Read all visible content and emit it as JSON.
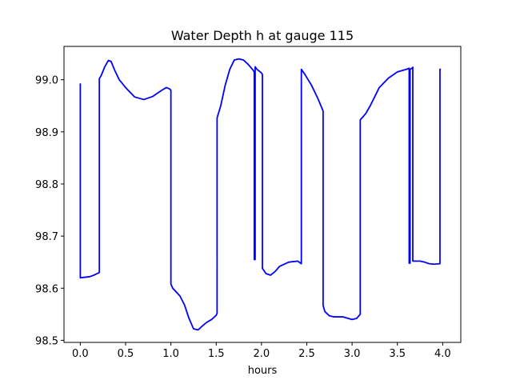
{
  "chart_data": {
    "type": "line",
    "title": "Water Depth h at gauge 115",
    "xlabel": "hours",
    "ylabel": "",
    "xlim": [
      -0.18,
      4.2
    ],
    "ylim": [
      98.496,
      99.064
    ],
    "grid": false,
    "legend": "none",
    "x_ticks": [
      0.0,
      0.5,
      1.0,
      1.5,
      2.0,
      2.5,
      3.0,
      3.5,
      4.0
    ],
    "x_tick_labels": [
      "0.0",
      "0.5",
      "1.0",
      "1.5",
      "2.0",
      "2.5",
      "3.0",
      "3.5",
      "4.0"
    ],
    "y_ticks": [
      98.5,
      98.6,
      98.7,
      98.8,
      98.9,
      99.0
    ],
    "y_tick_labels": [
      "98.5",
      "98.6",
      "98.7",
      "98.8",
      "98.9",
      "99.0"
    ],
    "series": [
      {
        "color": "#0000ff",
        "x": [
          0.0,
          0.0,
          0.05,
          0.1,
          0.15,
          0.21,
          0.21,
          0.23,
          0.27,
          0.31,
          0.34,
          0.38,
          0.43,
          0.5,
          0.6,
          0.7,
          0.8,
          0.9,
          0.95,
          0.99,
          1.0,
          1.0,
          1.02,
          1.1,
          1.15,
          1.2,
          1.25,
          1.3,
          1.35,
          1.4,
          1.45,
          1.5,
          1.51,
          1.51,
          1.55,
          1.6,
          1.65,
          1.7,
          1.75,
          1.8,
          1.85,
          1.9,
          1.92,
          1.92,
          1.93,
          1.93,
          1.95,
          2.0,
          2.01,
          2.01,
          2.05,
          2.1,
          2.15,
          2.2,
          2.3,
          2.4,
          2.44,
          2.44,
          2.48,
          2.55,
          2.62,
          2.68,
          2.68,
          2.7,
          2.75,
          2.8,
          2.9,
          3.0,
          3.05,
          3.09,
          3.09,
          3.15,
          3.2,
          3.3,
          3.4,
          3.5,
          3.6,
          3.63,
          3.63,
          3.64,
          3.64,
          3.66,
          3.67,
          3.67,
          3.7,
          3.75,
          3.8,
          3.85,
          3.9,
          3.97,
          3.97,
          3.98
        ],
        "y": [
          98.993,
          98.62,
          98.621,
          98.622,
          98.625,
          98.63,
          99.002,
          99.008,
          99.025,
          99.037,
          99.035,
          99.018,
          99.0,
          98.985,
          98.967,
          98.962,
          98.968,
          98.98,
          98.985,
          98.982,
          98.98,
          98.608,
          98.6,
          98.585,
          98.568,
          98.542,
          98.522,
          98.52,
          98.528,
          98.535,
          98.54,
          98.548,
          98.552,
          98.927,
          98.95,
          98.99,
          99.02,
          99.038,
          99.04,
          99.038,
          99.03,
          99.02,
          99.015,
          98.655,
          98.655,
          99.025,
          99.02,
          99.013,
          99.01,
          98.638,
          98.628,
          98.625,
          98.632,
          98.642,
          98.65,
          98.652,
          98.647,
          99.02,
          99.01,
          98.99,
          98.965,
          98.94,
          98.567,
          98.555,
          98.547,
          98.545,
          98.545,
          98.54,
          98.542,
          98.55,
          98.923,
          98.935,
          98.95,
          98.985,
          99.003,
          99.015,
          99.02,
          99.022,
          98.648,
          98.648,
          99.02,
          99.022,
          99.024,
          98.652,
          98.652,
          98.652,
          98.65,
          98.647,
          98.646,
          98.647,
          99.02,
          99.02
        ]
      }
    ]
  }
}
